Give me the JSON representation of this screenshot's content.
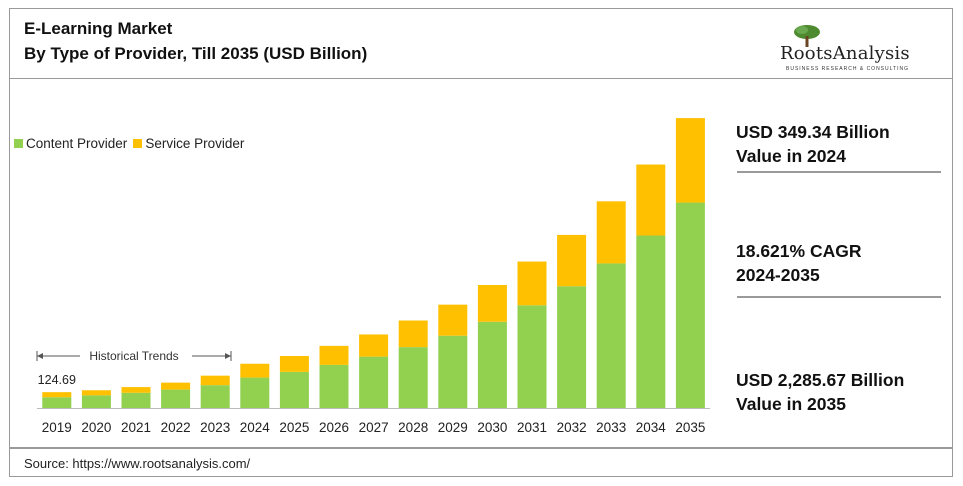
{
  "header": {
    "title_line1": "E-Learning Market",
    "title_line2": "By Type of Provider, Till 2035 (USD Billion)"
  },
  "logo": {
    "name": "RootsAnalysis",
    "tagline": "BUSINESS RESEARCH & CONSULTING"
  },
  "stats": {
    "stat1_line1": "USD 349.34 Billion",
    "stat1_line2": "Value in 2024",
    "stat2_line1": "18.621% CAGR",
    "stat2_line2": "2024-2035",
    "stat3_line1": "USD 2,285.67 Billion",
    "stat3_line2": "Value in 2035"
  },
  "source": "Source: https://www.rootsanalysis.com/",
  "colors": {
    "content": "#92d050",
    "service": "#ffc000",
    "border": "#9a9a9a"
  },
  "chart_data": {
    "type": "bar",
    "stacked": true,
    "title": "E-Learning Market By Type of Provider, Till 2035 (USD Billion)",
    "legend_position": "top-left",
    "categories": [
      "2019",
      "2020",
      "2021",
      "2022",
      "2023",
      "2024",
      "2025",
      "2026",
      "2027",
      "2028",
      "2029",
      "2030",
      "2031",
      "2032",
      "2033",
      "2034",
      "2035"
    ],
    "series": [
      {
        "name": "Content Provider",
        "values": [
          85,
          100,
          120,
          145,
          180,
          240,
          285,
          340,
          405,
          480,
          570,
          680,
          810,
          960,
          1140,
          1360,
          1620
        ]
      },
      {
        "name": "Service Provider",
        "values": [
          40,
          40,
          45,
          55,
          75,
          109,
          125,
          150,
          175,
          210,
          245,
          290,
          345,
          405,
          490,
          560,
          666
        ]
      }
    ],
    "annotations": {
      "first_total_label": "124.69",
      "historical_label": "Historical Trends"
    },
    "ylim": [
      0,
      2350
    ],
    "grid": false
  }
}
